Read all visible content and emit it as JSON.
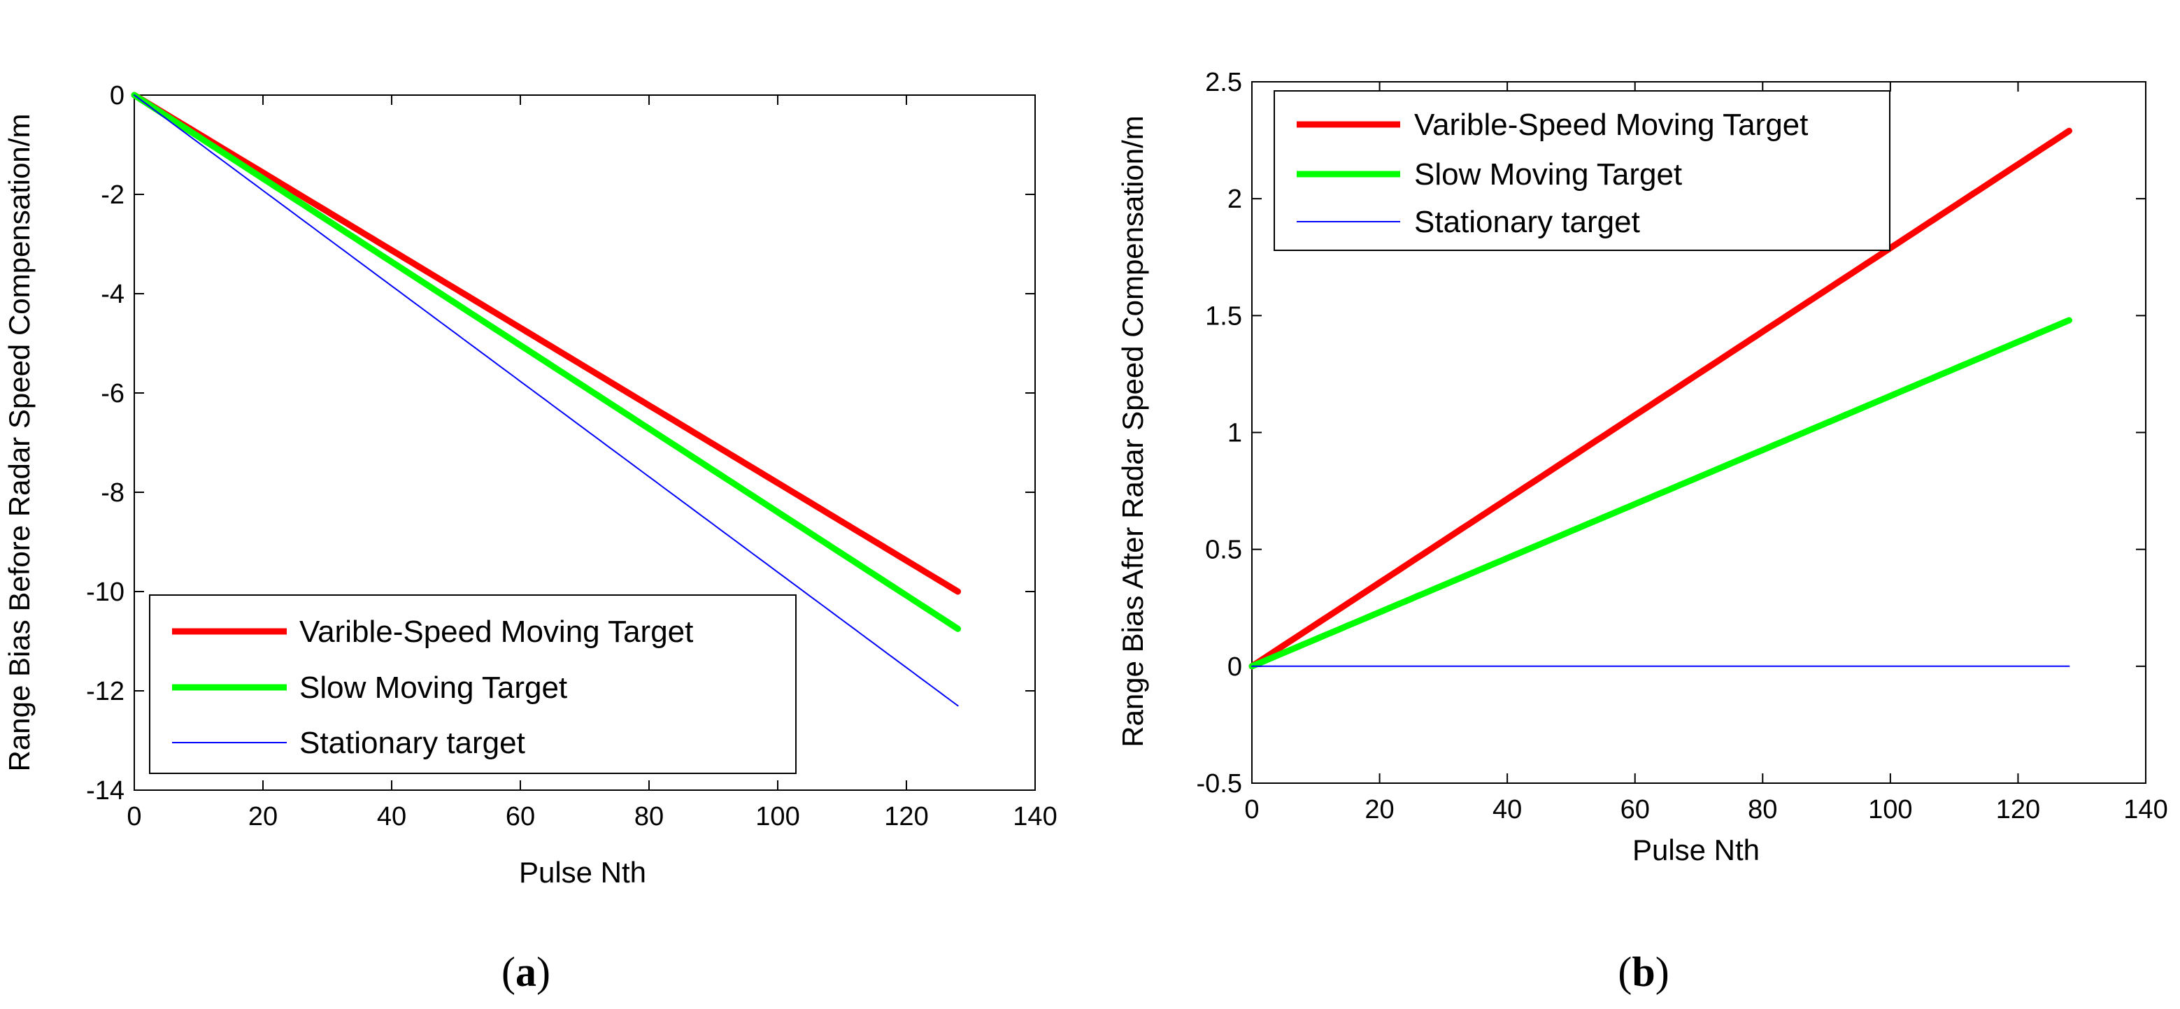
{
  "chart_data": [
    {
      "type": "line",
      "panel": "a",
      "panel_label": "a",
      "title": "",
      "xlabel": "Pulse Nth",
      "ylabel": "Range Bias Before Radar Speed Compensation/m",
      "xlim": [
        0,
        140
      ],
      "ylim": [
        -14,
        0
      ],
      "xticks": [
        0,
        20,
        40,
        60,
        80,
        100,
        120,
        140
      ],
      "yticks": [
        -14,
        -12,
        -10,
        -8,
        -6,
        -4,
        -2,
        0
      ],
      "xtick_labels": [
        "0",
        "20",
        "40",
        "60",
        "80",
        "100",
        "120",
        "140"
      ],
      "ytick_labels": [
        "-14",
        "-12",
        "-10",
        "-8",
        "-6",
        "-4",
        "-2",
        "0"
      ],
      "legend_position": "bottom-left",
      "series": [
        {
          "name": "Varible-Speed Moving Target",
          "color": "#ff0000",
          "width": "thick",
          "x": [
            0,
            128
          ],
          "values": [
            0,
            -10.0
          ]
        },
        {
          "name": "Slow Moving Target",
          "color": "#00ff00",
          "width": "thick",
          "x": [
            0,
            128
          ],
          "values": [
            0,
            -10.75
          ]
        },
        {
          "name": "Stationary target",
          "color": "#0000ff",
          "width": "thin",
          "x": [
            0,
            128
          ],
          "values": [
            0,
            -12.3
          ]
        }
      ]
    },
    {
      "type": "line",
      "panel": "b",
      "panel_label": "b",
      "title": "",
      "xlabel": "Pulse Nth",
      "ylabel": "Range Bias After Radar Speed Compensation/m",
      "xlim": [
        0,
        140
      ],
      "ylim": [
        -0.5,
        2.5
      ],
      "xticks": [
        0,
        20,
        40,
        60,
        80,
        100,
        120,
        140
      ],
      "yticks": [
        -0.5,
        0,
        0.5,
        1,
        1.5,
        2,
        2.5
      ],
      "xtick_labels": [
        "0",
        "20",
        "40",
        "60",
        "80",
        "100",
        "120",
        "140"
      ],
      "ytick_labels": [
        "-0.5",
        "0",
        "0.5",
        "1",
        "1.5",
        "2",
        "2.5"
      ],
      "legend_position": "top-left",
      "series": [
        {
          "name": "Varible-Speed Moving Target",
          "color": "#ff0000",
          "width": "thick",
          "x": [
            0,
            128
          ],
          "values": [
            0,
            2.29
          ]
        },
        {
          "name": "Slow Moving Target",
          "color": "#00ff00",
          "width": "thick",
          "x": [
            0,
            128
          ],
          "values": [
            0,
            1.48
          ]
        },
        {
          "name": "Stationary target",
          "color": "#0000ff",
          "width": "thin",
          "x": [
            0,
            128
          ],
          "values": [
            0,
            0
          ]
        }
      ]
    }
  ]
}
